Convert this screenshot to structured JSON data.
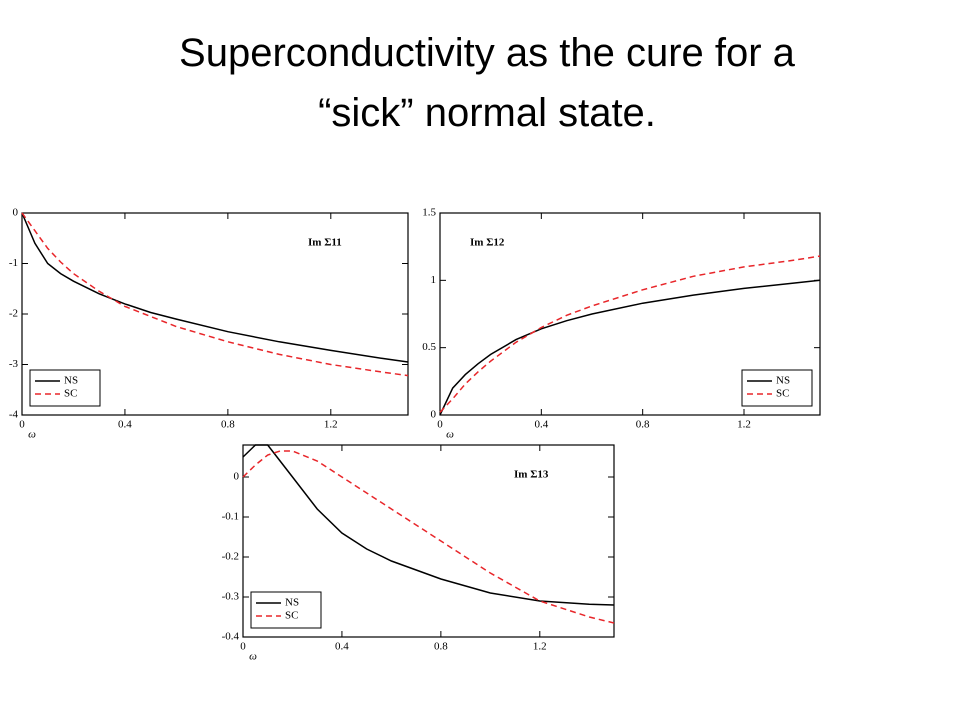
{
  "title": [
    "Superconductivity as the cure for a",
    "“sick” normal state."
  ],
  "chart_data": [
    {
      "type": "line",
      "annotation": "Im Σ11",
      "xlabel": "ω",
      "x": [
        0,
        0.05,
        0.1,
        0.15,
        0.2,
        0.3,
        0.4,
        0.5,
        0.6,
        0.8,
        1.0,
        1.2,
        1.4,
        1.5
      ],
      "xlim": [
        0,
        1.5
      ],
      "xticks": [
        0,
        0.4,
        0.8,
        1.2
      ],
      "ylim": [
        -4,
        0
      ],
      "yticks": [
        0,
        -1,
        -2,
        -3,
        -4
      ],
      "legend": "lower left",
      "series": [
        {
          "name": "NS",
          "color": "#000000",
          "style": "solid",
          "values": [
            0,
            -0.6,
            -1.0,
            -1.2,
            -1.35,
            -1.6,
            -1.8,
            -1.97,
            -2.1,
            -2.35,
            -2.55,
            -2.72,
            -2.88,
            -2.95
          ]
        },
        {
          "name": "SC",
          "color": "#e8262a",
          "style": "dashed",
          "values": [
            0,
            -0.35,
            -0.7,
            -0.97,
            -1.2,
            -1.55,
            -1.85,
            -2.05,
            -2.25,
            -2.55,
            -2.8,
            -3.0,
            -3.15,
            -3.22
          ]
        }
      ]
    },
    {
      "type": "line",
      "annotation": "Im Σ12",
      "xlabel": "ω",
      "x": [
        0,
        0.05,
        0.1,
        0.15,
        0.2,
        0.3,
        0.4,
        0.5,
        0.6,
        0.8,
        1.0,
        1.2,
        1.4,
        1.5
      ],
      "xlim": [
        0,
        1.5
      ],
      "xticks": [
        0,
        0.4,
        0.8,
        1.2
      ],
      "ylim": [
        0,
        1.5
      ],
      "yticks": [
        0,
        0.5,
        1,
        1.5
      ],
      "legend": "lower right",
      "series": [
        {
          "name": "NS",
          "color": "#000000",
          "style": "solid",
          "values": [
            0,
            0.2,
            0.3,
            0.38,
            0.45,
            0.56,
            0.64,
            0.7,
            0.75,
            0.83,
            0.89,
            0.94,
            0.98,
            1.0
          ]
        },
        {
          "name": "SC",
          "color": "#e8262a",
          "style": "dashed",
          "values": [
            0.02,
            0.12,
            0.23,
            0.32,
            0.4,
            0.54,
            0.65,
            0.74,
            0.81,
            0.93,
            1.03,
            1.1,
            1.15,
            1.18
          ]
        }
      ]
    },
    {
      "type": "line",
      "annotation": "Im Σ13",
      "xlabel": "ω",
      "x": [
        0,
        0.05,
        0.1,
        0.15,
        0.2,
        0.3,
        0.4,
        0.5,
        0.6,
        0.8,
        1.0,
        1.2,
        1.4,
        1.5
      ],
      "xlim": [
        0,
        1.5
      ],
      "xticks": [
        0,
        0.4,
        0.8,
        1.2
      ],
      "ylim": [
        -0.4,
        0.08
      ],
      "yticks": [
        0,
        -0.1,
        -0.2,
        -0.3,
        -0.4
      ],
      "legend": "lower left",
      "series": [
        {
          "name": "NS",
          "color": "#000000",
          "style": "solid",
          "values": [
            0.05,
            0.08,
            0.08,
            0.04,
            0.0,
            -0.08,
            -0.14,
            -0.18,
            -0.21,
            -0.255,
            -0.29,
            -0.31,
            -0.318,
            -0.32
          ]
        },
        {
          "name": "SC",
          "color": "#e8262a",
          "style": "dashed",
          "values": [
            0.0,
            0.03,
            0.055,
            0.065,
            0.065,
            0.04,
            0.0,
            -0.04,
            -0.08,
            -0.16,
            -0.24,
            -0.31,
            -0.35,
            -0.365
          ]
        }
      ]
    }
  ]
}
